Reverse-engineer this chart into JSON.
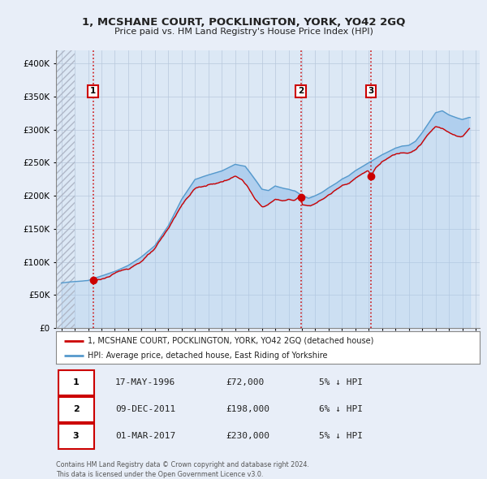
{
  "title": "1, MCSHANE COURT, POCKLINGTON, YORK, YO42 2GQ",
  "subtitle": "Price paid vs. HM Land Registry's House Price Index (HPI)",
  "legend_line1": "1, MCSHANE COURT, POCKLINGTON, YORK, YO42 2GQ (detached house)",
  "legend_line2": "HPI: Average price, detached house, East Riding of Yorkshire",
  "sale_dates_dec": [
    1996.37,
    2011.92,
    2017.16
  ],
  "sale_prices": [
    72000,
    198000,
    230000
  ],
  "sale_labels": [
    "1",
    "2",
    "3"
  ],
  "table_rows": [
    [
      "1",
      "17-MAY-1996",
      "£72,000",
      "5% ↓ HPI"
    ],
    [
      "2",
      "09-DEC-2011",
      "£198,000",
      "6% ↓ HPI"
    ],
    [
      "3",
      "01-MAR-2017",
      "£230,000",
      "5% ↓ HPI"
    ]
  ],
  "footer": "Contains HM Land Registry data © Crown copyright and database right 2024.\nThis data is licensed under the Open Government Licence v3.0.",
  "xlim": [
    1993.6,
    2025.3
  ],
  "ylim": [
    0,
    420000
  ],
  "yticks": [
    0,
    50000,
    100000,
    150000,
    200000,
    250000,
    300000,
    350000,
    400000
  ],
  "ytick_labels": [
    "£0",
    "£50K",
    "£100K",
    "£150K",
    "£200K",
    "£250K",
    "£300K",
    "£350K",
    "£400K"
  ],
  "xticks": [
    1994,
    1995,
    1996,
    1997,
    1998,
    1999,
    2000,
    2001,
    2002,
    2003,
    2004,
    2005,
    2006,
    2007,
    2008,
    2009,
    2010,
    2011,
    2012,
    2013,
    2014,
    2015,
    2016,
    2017,
    2018,
    2019,
    2020,
    2021,
    2022,
    2023,
    2024,
    2025
  ],
  "hatch_end": 1995.0,
  "sale_color": "#cc0000",
  "hpi_color": "#aaccee",
  "hpi_line_color": "#5599cc",
  "bg_color": "#e8eef8",
  "plot_bg": "#dce8f5",
  "grid_color": "#b8c8dc",
  "hatch_color": "#b0b8c8"
}
